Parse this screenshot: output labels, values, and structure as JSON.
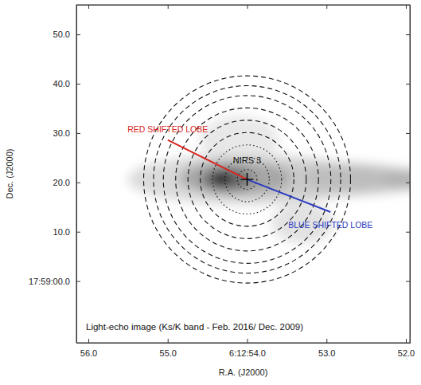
{
  "chart_data": {
    "type": "sky_map",
    "x_label": "R.A. (J2000)",
    "y_label": "Dec. (J2000)",
    "caption": "Light-echo image (Ks/K band - Feb. 2016/ Dec. 2009)",
    "xlim": [
      56.15,
      51.95
    ],
    "ylim": [
      -12.5,
      56
    ],
    "xticks": [
      {
        "value": 56,
        "label": "56.0"
      },
      {
        "value": 55,
        "label": "55.0"
      },
      {
        "value": 54,
        "label": "6:12:54.0"
      },
      {
        "value": 53,
        "label": "53.0"
      },
      {
        "value": 52,
        "label": "52.0"
      }
    ],
    "yticks": [
      {
        "value": 50,
        "label": "50.0"
      },
      {
        "value": 40,
        "label": "40.0"
      },
      {
        "value": 30,
        "label": "30.0"
      },
      {
        "value": 20,
        "label": "20.0"
      },
      {
        "value": 10,
        "label": "10.0"
      },
      {
        "value": 0,
        "label": "17:59:00.0"
      }
    ],
    "source": {
      "name": "NIRS 3",
      "x": 54.0,
      "y": 20.6,
      "marker": "plus"
    },
    "circles": [
      {
        "radius": 2,
        "line_style": "dotted"
      },
      {
        "radius": 4.5,
        "line_style": "dotted"
      },
      {
        "radius": 7,
        "line_style": "dotted"
      },
      {
        "radius": 9.5,
        "line_style": "dashed"
      },
      {
        "radius": 12,
        "line_style": "dashed"
      },
      {
        "radius": 14.5,
        "line_style": "dashed"
      },
      {
        "radius": 17,
        "line_style": "dashed"
      },
      {
        "radius": 19,
        "line_style": "dashed"
      },
      {
        "radius": 21,
        "line_style": "dashed"
      }
    ],
    "lobes": [
      {
        "name": "RED SHIFTED LOBE",
        "color": "#d8261d",
        "x": [
          54.0,
          55.0
        ],
        "y": [
          20.6,
          28.6
        ]
      },
      {
        "name": "BLUE SHIFTED LOBE",
        "color": "#2b3cc0",
        "x": [
          54.0,
          52.95
        ],
        "y": [
          20.6,
          14.0
        ]
      }
    ]
  }
}
